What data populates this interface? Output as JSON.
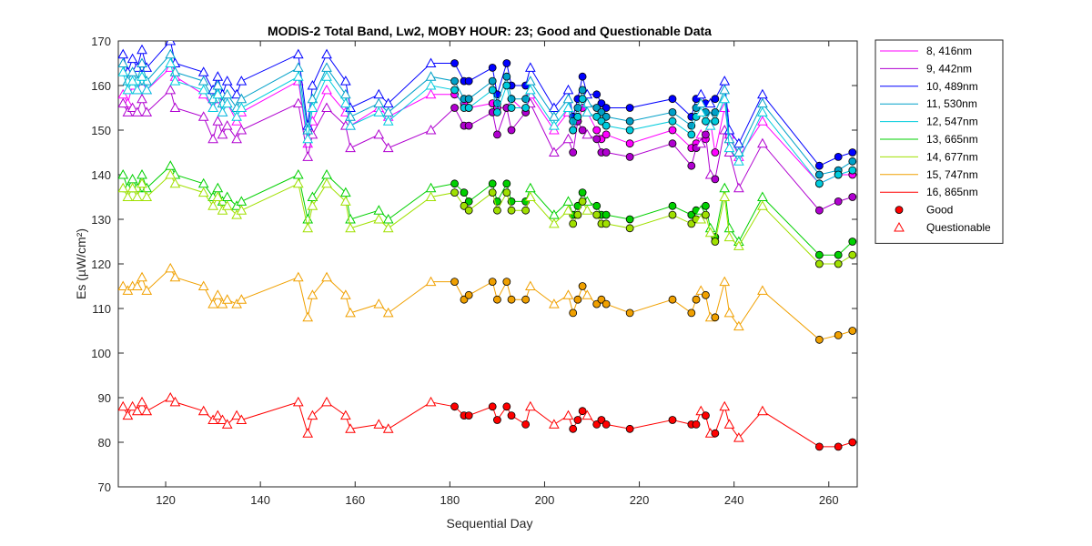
{
  "chart_data": {
    "type": "line",
    "title": "MODIS-2 Total Band,  Lw2, MOBY HOUR: 23;  Good and Questionable Data",
    "xlabel": "Sequential Day",
    "ylabel": "Es (µW/cm²)",
    "xlim": [
      110,
      266
    ],
    "ylim": [
      70,
      170
    ],
    "xticks": [
      120,
      140,
      160,
      180,
      200,
      220,
      240,
      260
    ],
    "yticks": [
      70,
      80,
      90,
      100,
      110,
      120,
      130,
      140,
      150,
      160,
      170
    ],
    "grid": false,
    "legend_position": "outside-top-right",
    "marker_legend": [
      {
        "label": "Good",
        "marker": "circle"
      },
      {
        "label": "Questionable",
        "marker": "triangle"
      }
    ],
    "x": [
      111,
      112,
      113,
      114,
      115,
      116,
      121,
      122,
      128,
      130,
      131,
      132,
      133,
      135,
      136,
      148,
      150,
      151,
      154,
      158,
      159,
      165,
      167,
      176,
      181,
      183,
      184,
      189,
      190,
      192,
      193,
      196,
      197,
      202,
      205,
      206,
      207,
      208,
      209,
      211,
      212,
      213,
      218,
      227,
      231,
      232,
      233,
      234,
      235,
      236,
      238,
      239,
      241,
      246,
      258,
      262,
      265
    ],
    "quality": [
      "Q",
      "Q",
      "Q",
      "Q",
      "Q",
      "Q",
      "Q",
      "Q",
      "Q",
      "Q",
      "Q",
      "Q",
      "Q",
      "Q",
      "Q",
      "Q",
      "Q",
      "Q",
      "Q",
      "Q",
      "Q",
      "Q",
      "Q",
      "Q",
      "G",
      "G",
      "G",
      "G",
      "G",
      "G",
      "G",
      "G",
      "Q",
      "Q",
      "Q",
      "G",
      "G",
      "G",
      "Q",
      "G",
      "G",
      "G",
      "G",
      "G",
      "G",
      "G",
      "Q",
      "G",
      "Q",
      "G",
      "Q",
      "Q",
      "Q",
      "Q",
      "G",
      "G",
      "G"
    ],
    "series": [
      {
        "name": "8, 416nm",
        "color": "#ff00ff",
        "values": [
          158,
          156,
          160,
          159,
          161,
          159,
          164,
          162,
          158,
          155,
          157,
          154,
          156,
          152,
          154,
          161,
          147,
          152,
          159,
          154,
          151,
          155,
          153,
          158,
          158,
          156,
          155,
          156,
          155,
          155,
          157,
          154,
          158,
          150,
          154,
          150,
          152,
          155,
          154,
          150,
          148,
          149,
          147,
          150,
          146,
          147,
          149,
          148,
          152,
          145,
          155,
          149,
          144,
          152,
          138,
          140,
          140
        ]
      },
      {
        "name": "9, 442nm",
        "color": "#b000d0",
        "values": [
          156,
          154,
          155,
          154,
          157,
          154,
          159,
          155,
          153,
          148,
          152,
          149,
          151,
          148,
          150,
          156,
          144,
          149,
          155,
          151,
          146,
          149,
          146,
          150,
          155,
          151,
          151,
          154,
          149,
          155,
          150,
          154,
          156,
          145,
          148,
          145,
          152,
          150,
          149,
          148,
          145,
          145,
          144,
          147,
          142,
          146,
          147,
          149,
          140,
          139,
          150,
          145,
          137,
          147,
          132,
          134,
          135
        ]
      },
      {
        "name": "10, 489nm",
        "color": "#0000ff",
        "values": [
          167,
          163,
          166,
          164,
          168,
          164,
          170,
          165,
          163,
          159,
          162,
          158,
          161,
          158,
          161,
          167,
          151,
          160,
          167,
          161,
          155,
          158,
          156,
          165,
          165,
          161,
          161,
          164,
          158,
          165,
          160,
          160,
          164,
          155,
          159,
          153,
          157,
          162,
          158,
          158,
          156,
          155,
          155,
          157,
          153,
          157,
          158,
          156,
          156,
          157,
          161,
          150,
          147,
          158,
          142,
          144,
          145
        ]
      },
      {
        "name": "11, 530nm",
        "color": "#00a0c8",
        "values": [
          165,
          161,
          163,
          161,
          165,
          161,
          167,
          163,
          161,
          157,
          160,
          156,
          158,
          155,
          157,
          164,
          150,
          157,
          164,
          158,
          153,
          156,
          154,
          162,
          161,
          157,
          157,
          161,
          156,
          162,
          157,
          157,
          161,
          153,
          157,
          152,
          155,
          159,
          156,
          155,
          154,
          153,
          152,
          154,
          151,
          155,
          156,
          154,
          153,
          154,
          159,
          148,
          145,
          156,
          140,
          141,
          143
        ]
      },
      {
        "name": "12, 547nm",
        "color": "#00ccdd",
        "values": [
          163,
          159,
          161,
          159,
          162,
          159,
          165,
          161,
          159,
          155,
          158,
          154,
          156,
          153,
          155,
          162,
          148,
          155,
          162,
          156,
          151,
          154,
          152,
          160,
          159,
          155,
          155,
          159,
          154,
          160,
          155,
          155,
          159,
          151,
          155,
          150,
          153,
          157,
          154,
          153,
          152,
          151,
          150,
          152,
          149,
          153,
          154,
          152,
          151,
          152,
          157,
          146,
          143,
          154,
          138,
          140,
          141
        ]
      },
      {
        "name": "13, 665nm",
        "color": "#00d000",
        "values": [
          140,
          137,
          139,
          137,
          140,
          137,
          142,
          140,
          138,
          135,
          137,
          134,
          135,
          133,
          134,
          140,
          130,
          135,
          140,
          136,
          130,
          132,
          130,
          137,
          138,
          136,
          134,
          138,
          134,
          138,
          134,
          134,
          137,
          131,
          134,
          131,
          133,
          136,
          134,
          133,
          131,
          131,
          130,
          133,
          131,
          132,
          132,
          133,
          128,
          126,
          137,
          128,
          125,
          135,
          122,
          122,
          125
        ]
      },
      {
        "name": "14, 677nm",
        "color": "#a0e000",
        "values": [
          137,
          135,
          137,
          135,
          138,
          135,
          140,
          138,
          136,
          133,
          135,
          132,
          133,
          131,
          132,
          138,
          128,
          133,
          138,
          134,
          128,
          130,
          128,
          135,
          136,
          133,
          132,
          136,
          132,
          136,
          132,
          132,
          135,
          129,
          132,
          129,
          131,
          134,
          132,
          131,
          129,
          129,
          128,
          131,
          129,
          130,
          130,
          131,
          127,
          125,
          135,
          126,
          124,
          133,
          120,
          120,
          122
        ]
      },
      {
        "name": "15, 747nm",
        "color": "#f0a000",
        "values": [
          115,
          114,
          115,
          115,
          117,
          114,
          119,
          117,
          115,
          111,
          113,
          111,
          112,
          111,
          112,
          117,
          108,
          113,
          117,
          113,
          109,
          111,
          109,
          116,
          116,
          112,
          113,
          116,
          112,
          116,
          112,
          112,
          115,
          111,
          113,
          109,
          112,
          115,
          113,
          111,
          112,
          111,
          109,
          112,
          109,
          112,
          114,
          113,
          108,
          108,
          116,
          109,
          106,
          114,
          103,
          104,
          105
        ]
      },
      {
        "name": "16, 865nm",
        "color": "#ff0000",
        "values": [
          88,
          86,
          88,
          87,
          89,
          87,
          90,
          89,
          87,
          85,
          86,
          85,
          84,
          86,
          85,
          89,
          82,
          86,
          89,
          86,
          83,
          84,
          83,
          89,
          88,
          86,
          86,
          88,
          85,
          88,
          86,
          84,
          88,
          84,
          86,
          83,
          85,
          87,
          86,
          84,
          85,
          84,
          83,
          85,
          84,
          84,
          87,
          86,
          82,
          82,
          88,
          84,
          81,
          87,
          79,
          79,
          80
        ]
      }
    ]
  }
}
